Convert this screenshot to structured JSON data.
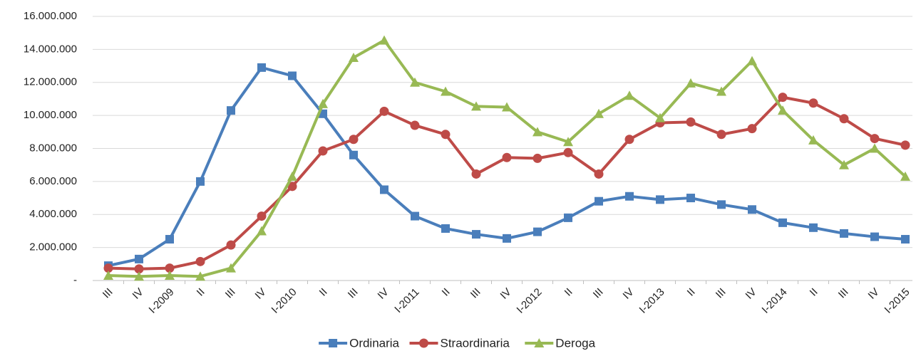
{
  "chart_data": {
    "type": "line",
    "categories": [
      "III",
      "IV",
      "I-2009",
      "II",
      "III",
      "IV",
      "I-2010",
      "II",
      "III",
      "IV",
      "I-2011",
      "II",
      "III",
      "IV",
      "I-2012",
      "II",
      "III",
      "IV",
      "I-2013",
      "II",
      "III",
      "IV",
      "I-2014",
      "II",
      "III",
      "IV",
      "I-2015"
    ],
    "series": [
      {
        "name": "Ordinaria",
        "color": "#4a7ebb",
        "marker": "square",
        "values": [
          900000,
          1300000,
          2500000,
          6000000,
          10300000,
          12900000,
          12400000,
          10100000,
          7600000,
          5500000,
          3900000,
          3150000,
          2800000,
          2550000,
          2950000,
          3800000,
          4800000,
          5100000,
          4900000,
          5000000,
          4600000,
          4300000,
          3500000,
          3200000,
          2850000,
          2650000,
          2500000
        ]
      },
      {
        "name": "Straordinaria",
        "color": "#be4b48",
        "marker": "circle",
        "values": [
          750000,
          700000,
          750000,
          1150000,
          2150000,
          3900000,
          5700000,
          7850000,
          8550000,
          10250000,
          9400000,
          8850000,
          6450000,
          7450000,
          7400000,
          7750000,
          6450000,
          8550000,
          9550000,
          9600000,
          8850000,
          9200000,
          11100000,
          10750000,
          9800000,
          8600000,
          8200000
        ]
      },
      {
        "name": "Deroga",
        "color": "#98b954",
        "marker": "triangle",
        "values": [
          300000,
          250000,
          300000,
          250000,
          750000,
          3000000,
          6300000,
          10700000,
          13500000,
          14550000,
          12000000,
          11450000,
          10550000,
          10500000,
          9000000,
          8400000,
          10100000,
          11200000,
          9850000,
          11950000,
          11450000,
          13300000,
          10300000,
          8500000,
          7000000,
          8000000,
          6300000
        ]
      }
    ],
    "ylim": [
      0,
      16000000
    ],
    "yticks": [
      {
        "value": 0,
        "label": "-"
      },
      {
        "value": 2000000,
        "label": "2.000.000"
      },
      {
        "value": 4000000,
        "label": "4.000.000"
      },
      {
        "value": 6000000,
        "label": "6.000.000"
      },
      {
        "value": 8000000,
        "label": "8.000.000"
      },
      {
        "value": 10000000,
        "label": "10.000.000"
      },
      {
        "value": 12000000,
        "label": "12.000.000"
      },
      {
        "value": 14000000,
        "label": "14.000.000"
      },
      {
        "value": 16000000,
        "label": "16.000.000"
      }
    ],
    "grid": true,
    "legend": "bottom"
  }
}
